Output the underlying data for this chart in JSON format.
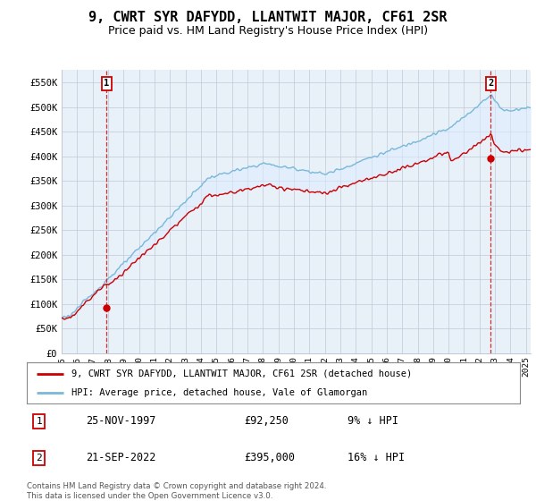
{
  "title": "9, CWRT SYR DAFYDD, LLANTWIT MAJOR, CF61 2SR",
  "subtitle": "Price paid vs. HM Land Registry's House Price Index (HPI)",
  "ylabel_ticks": [
    "£0",
    "£50K",
    "£100K",
    "£150K",
    "£200K",
    "£250K",
    "£300K",
    "£350K",
    "£400K",
    "£450K",
    "£500K",
    "£550K"
  ],
  "ytick_vals": [
    0,
    50000,
    100000,
    150000,
    200000,
    250000,
    300000,
    350000,
    400000,
    450000,
    500000,
    550000
  ],
  "ylim": [
    0,
    575000
  ],
  "xlim_start": 1995.3,
  "xlim_end": 2025.3,
  "hpi_color": "#7ab8d9",
  "price_color": "#cc0000",
  "fill_color": "#ddeeff",
  "bg_color": "#e8f0f8",
  "grid_color": "#c0c8d8",
  "marker1_date": 1997.9,
  "marker1_price": 92250,
  "marker2_date": 2022.72,
  "marker2_price": 395000,
  "legend_label_price": "9, CWRT SYR DAFYDD, LLANTWIT MAJOR, CF61 2SR (detached house)",
  "legend_label_hpi": "HPI: Average price, detached house, Vale of Glamorgan",
  "annotation1_date": "25-NOV-1997",
  "annotation1_price": "£92,250",
  "annotation1_pct": "9% ↓ HPI",
  "annotation2_date": "21-SEP-2022",
  "annotation2_price": "£395,000",
  "annotation2_pct": "16% ↓ HPI",
  "footer": "Contains HM Land Registry data © Crown copyright and database right 2024.\nThis data is licensed under the Open Government Licence v3.0.",
  "title_fontsize": 11,
  "subtitle_fontsize": 9
}
